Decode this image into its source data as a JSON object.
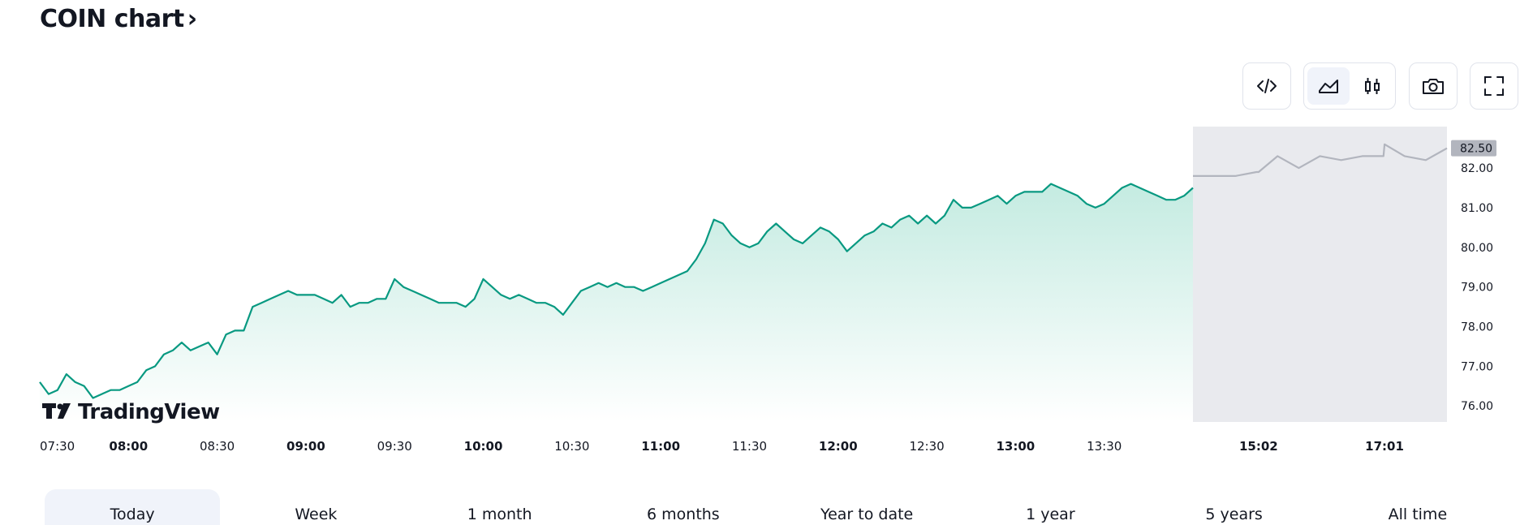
{
  "title": "COIN chart",
  "title_chevron": "›",
  "toolbar": {
    "icons": [
      "embed-code-icon",
      "area-chart-icon",
      "candlestick-icon",
      "camera-icon",
      "fullscreen-icon"
    ],
    "active": "area-chart-icon"
  },
  "watermark": "TradingView",
  "tabs": [
    "Today",
    "Week",
    "1 month",
    "6 months",
    "Year to date",
    "1 year",
    "5 years",
    "All time"
  ],
  "active_tab": "Today",
  "colors": {
    "line": "#089981",
    "fill_top": "#c4ebe1",
    "after_line": "#b2b5be",
    "after_fill": "#e9eaee",
    "badge": "#b2b5be"
  },
  "chart_data": {
    "type": "area",
    "ylim": [
      75.8,
      82.8
    ],
    "y_ticks": [
      "76.00",
      "77.00",
      "78.00",
      "79.00",
      "80.00",
      "81.00",
      "82.00"
    ],
    "y_tick_values": [
      76,
      77,
      78,
      79,
      80,
      81,
      82
    ],
    "last_price_label": "82.50",
    "last_price": 82.5,
    "x_ticks": [
      {
        "label": "07:30",
        "bold": false
      },
      {
        "label": "08:00",
        "bold": true
      },
      {
        "label": "08:30",
        "bold": false
      },
      {
        "label": "09:00",
        "bold": true
      },
      {
        "label": "09:30",
        "bold": false
      },
      {
        "label": "10:00",
        "bold": true
      },
      {
        "label": "10:30",
        "bold": false
      },
      {
        "label": "11:00",
        "bold": true
      },
      {
        "label": "11:30",
        "bold": false
      },
      {
        "label": "12:00",
        "bold": true
      },
      {
        "label": "12:30",
        "bold": false
      },
      {
        "label": "13:00",
        "bold": true
      },
      {
        "label": "13:30",
        "bold": false
      },
      {
        "label": "15:02",
        "bold": true
      },
      {
        "label": "17:01",
        "bold": true
      }
    ],
    "session_series": {
      "x": [
        "07:30",
        "07:33",
        "07:36",
        "07:39",
        "07:42",
        "07:45",
        "07:48",
        "07:51",
        "07:54",
        "07:57",
        "08:00",
        "08:03",
        "08:06",
        "08:09",
        "08:12",
        "08:15",
        "08:18",
        "08:21",
        "08:24",
        "08:27",
        "08:30",
        "08:33",
        "08:36",
        "08:39",
        "08:42",
        "08:45",
        "08:48",
        "08:51",
        "08:54",
        "08:57",
        "09:00",
        "09:03",
        "09:06",
        "09:09",
        "09:12",
        "09:15",
        "09:18",
        "09:21",
        "09:24",
        "09:27",
        "09:30",
        "09:33",
        "09:36",
        "09:39",
        "09:42",
        "09:45",
        "09:48",
        "09:51",
        "09:54",
        "09:57",
        "10:00",
        "10:03",
        "10:06",
        "10:09",
        "10:12",
        "10:15",
        "10:18",
        "10:21",
        "10:24",
        "10:27",
        "10:30",
        "10:33",
        "10:36",
        "10:39",
        "10:42",
        "10:45",
        "10:48",
        "10:51",
        "10:54",
        "10:57",
        "11:00",
        "11:03",
        "11:06",
        "11:09",
        "11:12",
        "11:15",
        "11:18",
        "11:21",
        "11:24",
        "11:27",
        "11:30",
        "11:33",
        "11:36",
        "11:39",
        "11:42",
        "11:45",
        "11:48",
        "11:51",
        "11:54",
        "11:57",
        "12:00",
        "12:03",
        "12:06",
        "12:09",
        "12:12",
        "12:15",
        "12:18",
        "12:21",
        "12:24",
        "12:27",
        "12:30",
        "12:33",
        "12:36",
        "12:39",
        "12:42",
        "12:45",
        "12:48",
        "12:51",
        "12:54",
        "12:57",
        "13:00",
        "13:03",
        "13:06",
        "13:09",
        "13:12",
        "13:15",
        "13:18",
        "13:21",
        "13:24",
        "13:27",
        "13:30",
        "13:33",
        "13:36",
        "13:39",
        "13:42",
        "13:45",
        "13:48",
        "13:51",
        "13:54",
        "13:57",
        "14:00"
      ],
      "y": [
        76.6,
        76.3,
        76.4,
        76.8,
        76.6,
        76.5,
        76.2,
        76.3,
        76.4,
        76.4,
        76.5,
        76.6,
        76.9,
        77.0,
        77.3,
        77.4,
        77.6,
        77.4,
        77.5,
        77.6,
        77.3,
        77.8,
        77.9,
        77.9,
        78.5,
        78.6,
        78.7,
        78.8,
        78.9,
        78.8,
        78.8,
        78.8,
        78.7,
        78.6,
        78.8,
        78.5,
        78.6,
        78.6,
        78.7,
        78.7,
        79.2,
        79.0,
        78.9,
        78.8,
        78.7,
        78.6,
        78.6,
        78.6,
        78.5,
        78.7,
        79.2,
        79.0,
        78.8,
        78.7,
        78.8,
        78.7,
        78.6,
        78.6,
        78.5,
        78.3,
        78.6,
        78.9,
        79.0,
        79.1,
        79.0,
        79.1,
        79.0,
        79.0,
        78.9,
        79.0,
        79.1,
        79.2,
        79.3,
        79.4,
        79.7,
        80.1,
        80.7,
        80.6,
        80.3,
        80.1,
        80.0,
        80.1,
        80.4,
        80.6,
        80.4,
        80.2,
        80.1,
        80.3,
        80.5,
        80.4,
        80.2,
        79.9,
        80.1,
        80.3,
        80.4,
        80.6,
        80.5,
        80.7,
        80.8,
        80.6,
        80.8,
        80.6,
        80.8,
        81.2,
        81.0,
        81.0,
        81.1,
        81.2,
        81.3,
        81.1,
        81.3,
        81.4,
        81.4,
        81.4,
        81.6,
        81.5,
        81.4,
        81.3,
        81.1,
        81.0,
        81.1,
        81.3,
        81.5,
        81.6,
        81.5,
        81.4,
        81.3,
        81.2,
        81.2,
        81.3,
        81.5
      ]
    },
    "after_series": {
      "x": [
        "14:00",
        "14:20",
        "14:40",
        "15:00",
        "15:02",
        "15:20",
        "15:40",
        "16:00",
        "16:20",
        "16:40",
        "17:00",
        "17:01",
        "17:20",
        "17:40",
        "18:00"
      ],
      "y": [
        81.8,
        81.8,
        81.8,
        81.9,
        81.9,
        82.3,
        82.0,
        82.3,
        82.2,
        82.3,
        82.3,
        82.6,
        82.3,
        82.2,
        82.5
      ]
    }
  }
}
